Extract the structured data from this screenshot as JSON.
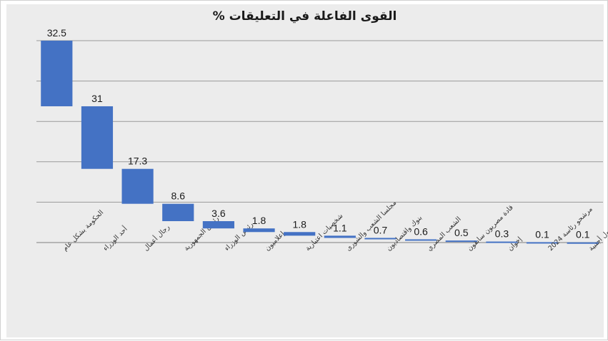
{
  "chart_data": {
    "type": "waterfall",
    "title": "القوى الفاعلة في التعليقات %",
    "categories": [
      "الحكومة بشكل عام",
      "أحد الوزراء",
      "رجال أعمال",
      "رئيس الجمهورية",
      "رئيس الوزراء",
      "إعلاميون",
      "شخصيات اعتبارية",
      "مجلسا الشعب والشورى",
      "بنوك واقتصاديون",
      "الشعب المصري",
      "قادة مصريون سابقون",
      "إخوان",
      "مرشحو رئاسة 2024",
      "دول أجنبية"
    ],
    "values": [
      32.5,
      31,
      17.3,
      8.6,
      3.6,
      1.8,
      1.8,
      1.1,
      0.7,
      0.6,
      0.5,
      0.3,
      0.1,
      0.1
    ],
    "data_labels": [
      "32.5",
      "31",
      "17.3",
      "8.6",
      "3.6",
      "1.8",
      "1.8",
      "1.1",
      "0.7",
      "0.6",
      "0.5",
      "0.3",
      "0.1",
      "0.1"
    ],
    "ylim": [
      0,
      100
    ],
    "grid": true,
    "legend": "none",
    "bar_color": "#4472c4",
    "grid_color": "#9a9a9a"
  }
}
